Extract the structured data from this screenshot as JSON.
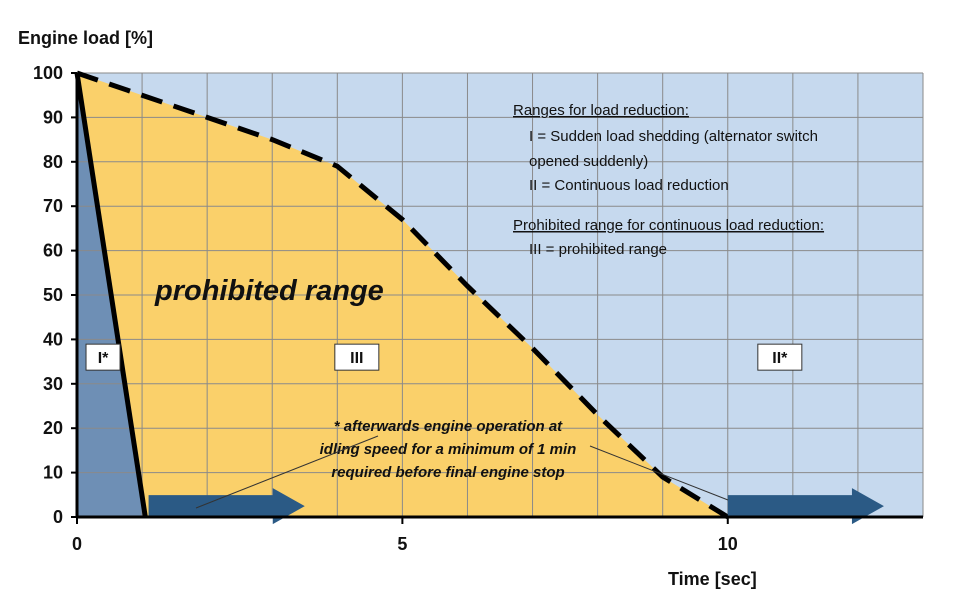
{
  "chart_data": {
    "type": "area",
    "ylabel": "Engine load [%]",
    "xlabel": "Time [sec]",
    "xlim": [
      0,
      13
    ],
    "ylim": [
      0,
      100
    ],
    "x_ticks": [
      0,
      5,
      10
    ],
    "x_tick_labels": [
      "0",
      "5",
      "10"
    ],
    "y_ticks": [
      0,
      10,
      20,
      30,
      40,
      50,
      60,
      70,
      80,
      90,
      100
    ],
    "y_tick_labels": [
      "0",
      "10",
      "20",
      "30",
      "40",
      "50",
      "60",
      "70",
      "80",
      "90",
      "100"
    ],
    "x_minor_grid": [
      0,
      1,
      2,
      3,
      4,
      5,
      6,
      7,
      8,
      9,
      10,
      11,
      12,
      13
    ],
    "grid": true,
    "background_color": "#c6d9ee",
    "series": [
      {
        "style": "solid-line",
        "color": "#000000",
        "points": [
          [
            0,
            100
          ],
          [
            1.05,
            0
          ]
        ]
      },
      {
        "style": "dashed-line",
        "color": "#000000",
        "points": [
          [
            0,
            100
          ],
          [
            1,
            95
          ],
          [
            2,
            90
          ],
          [
            3,
            85
          ],
          [
            4,
            79
          ],
          [
            5,
            67
          ],
          [
            6,
            52
          ],
          [
            7,
            38
          ],
          [
            8,
            23
          ],
          [
            9,
            9
          ],
          [
            10,
            0
          ]
        ]
      }
    ],
    "regions": [
      {
        "id": "I",
        "label": "I*",
        "color": "#6e8fb5",
        "label_pos": [
          0.4,
          36
        ]
      },
      {
        "id": "III",
        "label": "III",
        "color": "#fad06a",
        "label_pos": [
          4.3,
          36
        ]
      },
      {
        "id": "II",
        "label": "II*",
        "color": "#c6d9ee",
        "label_pos": [
          10.8,
          36
        ]
      }
    ],
    "prohibited_label": "prohibited range",
    "legend": {
      "heading1": "Ranges for load reduction:",
      "line1": "I  = Sudden load shedding (alternator switch",
      "line2": "opened suddenly)",
      "line3": "II = Continuous load reduction",
      "heading2": "Prohibited range for continuous load reduction:",
      "line4": "III = prohibited range"
    },
    "note": {
      "line1": "* afterwards engine operation at",
      "line2": "idling speed for a minimum of 1 min",
      "line3": "required before final engine stop"
    },
    "arrows": [
      {
        "from": [
          1.1,
          2
        ],
        "to": [
          3.5,
          2
        ]
      },
      {
        "from": [
          10,
          2
        ],
        "to": [
          12.4,
          2
        ]
      }
    ],
    "colors": {
      "arrow_fill": "#2b5a85",
      "dashed_line": "#000000",
      "grid": "#8a8a8a",
      "axis": "#000000"
    }
  }
}
